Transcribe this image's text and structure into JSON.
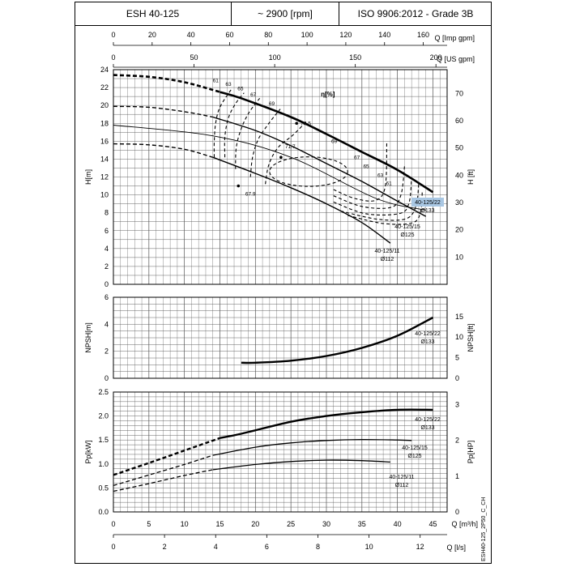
{
  "header": {
    "model": "ESH 40-125",
    "speed": "~ 2900 [rpm]",
    "standard": "ISO 9906:2012 - Grade 3B"
  },
  "side_code": "ESH40-125_2P50_C_CH",
  "colors": {
    "curve": "#000000",
    "grid": "#555555",
    "highlight": "#a9c7e3"
  },
  "chart_data": [
    {
      "type": "line",
      "title": "H-Q",
      "xlabel": "Q [m³/h]",
      "xlim": [
        0,
        47
      ],
      "ylabel": "H[m]",
      "ylabel_right": "H [ft]",
      "ylim": [
        0,
        24
      ],
      "yticks": [
        0,
        2,
        4,
        6,
        8,
        10,
        12,
        14,
        16,
        18,
        20,
        22,
        24
      ],
      "yticks_right": [
        10,
        20,
        30,
        40,
        50,
        60,
        70
      ],
      "top_axes": [
        {
          "label": "Q [Imp gpm]",
          "ticks": [
            0,
            20,
            40,
            60,
            80,
            100,
            120,
            140,
            160
          ]
        },
        {
          "label": "Q [US gpm]",
          "ticks": [
            0,
            50,
            100,
            150,
            200
          ]
        }
      ],
      "efficiency_label": "η[%]",
      "series": [
        {
          "name": "40-125/22",
          "sub": "Ø133",
          "x": [
            0,
            5,
            10,
            15,
            18,
            25,
            30,
            35,
            40,
            45
          ],
          "y": [
            23.4,
            23.2,
            22.6,
            21.5,
            20.8,
            18.7,
            16.8,
            14.8,
            12.8,
            10.3
          ],
          "dashed_until": 15
        },
        {
          "name": "40-125/15",
          "sub": "Ø125",
          "x": [
            0,
            5,
            10,
            14,
            20,
            25,
            30,
            35,
            40,
            44
          ],
          "y": [
            19.9,
            19.8,
            19.3,
            18.7,
            17.2,
            15.5,
            13.5,
            11.5,
            9.3,
            7.6
          ],
          "dashed_until": 14
        },
        {
          "name": "40-125/11",
          "sub": "Ø112",
          "x": [
            0,
            5,
            10,
            14,
            20,
            25,
            30,
            35,
            39
          ],
          "y": [
            15.7,
            15.6,
            15.1,
            14.2,
            12.4,
            10.8,
            9.0,
            6.9,
            4.6
          ],
          "dashed_until": 14
        }
      ],
      "efficiency_labels": [
        "61",
        "63",
        "65",
        "67",
        "69",
        "70.5",
        "71.7",
        "67.9",
        "69",
        "67",
        "65",
        "63",
        "61"
      ]
    },
    {
      "type": "line",
      "title": "NPSH-Q",
      "ylabel": "NPSH[m]",
      "ylabel_right": "NPSH[ft]",
      "ylim": [
        0,
        6
      ],
      "yticks": [
        0,
        2,
        4,
        6
      ],
      "yticks_right": [
        0,
        5,
        10,
        15
      ],
      "series": [
        {
          "name": "40-125/22",
          "sub": "Ø133",
          "x": [
            18,
            20,
            25,
            30,
            35,
            40,
            45
          ],
          "y": [
            1.15,
            1.15,
            1.3,
            1.65,
            2.25,
            3.15,
            4.5
          ]
        }
      ]
    },
    {
      "type": "line",
      "title": "P-Q",
      "xlabel": "Q [m³/h]",
      "xlabel2": "Q [l/s]",
      "ylabel": "Pp[kW]",
      "ylabel_right": "Pp[HP]",
      "ylim": [
        0,
        2.5
      ],
      "yticks": [
        0.0,
        0.5,
        1.0,
        1.5,
        2.0,
        2.5
      ],
      "yticks_right": [
        0,
        1,
        2,
        3
      ],
      "xticks": [
        0,
        5,
        10,
        15,
        20,
        25,
        30,
        35,
        40,
        45
      ],
      "xticks_ls": [
        0,
        2,
        4,
        6,
        8,
        10,
        12
      ],
      "series": [
        {
          "name": "40-125/22",
          "sub": "Ø133",
          "x": [
            0,
            5,
            10,
            15,
            18,
            25,
            30,
            35,
            40,
            45
          ],
          "y": [
            0.77,
            1.02,
            1.28,
            1.54,
            1.63,
            1.88,
            2.0,
            2.08,
            2.13,
            2.13
          ],
          "dashed_until": 15
        },
        {
          "name": "40-125/15",
          "sub": "Ø125",
          "x": [
            0,
            5,
            10,
            14,
            20,
            25,
            30,
            35,
            40,
            42
          ],
          "y": [
            0.55,
            0.77,
            0.99,
            1.18,
            1.35,
            1.44,
            1.49,
            1.51,
            1.5,
            1.49
          ],
          "dashed_until": 14
        },
        {
          "name": "40-125/11",
          "sub": "Ø112",
          "x": [
            0,
            5,
            10,
            14,
            20,
            25,
            30,
            35,
            39
          ],
          "y": [
            0.43,
            0.59,
            0.76,
            0.88,
            0.99,
            1.05,
            1.08,
            1.07,
            1.04
          ],
          "dashed_until": 14
        }
      ]
    }
  ]
}
